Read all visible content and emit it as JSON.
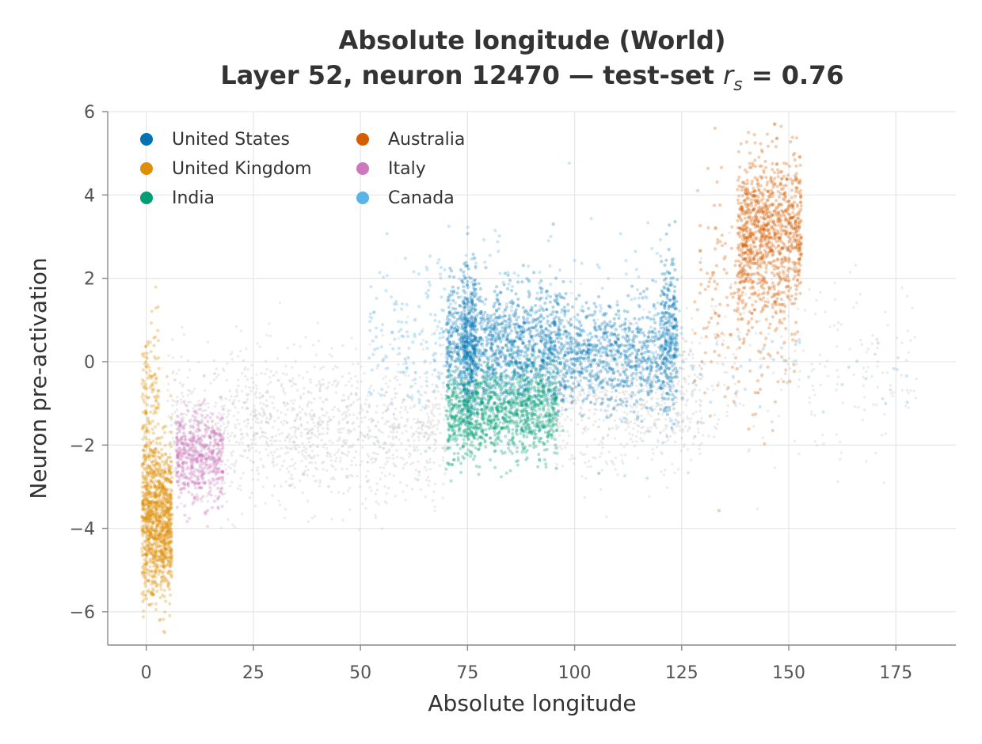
{
  "chart_data": {
    "type": "scatter",
    "title_line1": "Absolute longitude (World)",
    "title_line2_prefix": "Layer 52, neuron 12470 — test-set ",
    "title_stat_symbol": "r",
    "title_stat_subscript": "s",
    "title_line2_suffix": " = 0.76",
    "xlabel": "Absolute longitude",
    "ylabel": "Neuron pre-activation",
    "xlim": [
      -9,
      189
    ],
    "ylim": [
      -6.8,
      6.0
    ],
    "x_ticks": [
      0,
      25,
      50,
      75,
      100,
      125,
      150,
      175
    ],
    "x_tick_labels": [
      "0",
      "25",
      "50",
      "75",
      "100",
      "125",
      "150",
      "175"
    ],
    "y_ticks": [
      -6,
      -4,
      -2,
      0,
      2,
      4,
      6
    ],
    "y_tick_labels": [
      "−6",
      "−4",
      "−2",
      "0",
      "2",
      "4",
      "6"
    ],
    "grid": true,
    "legend_position": "top-left",
    "background_series": {
      "color": "#bbbbbb",
      "clusters": [
        {
          "x": [
            5,
            70
          ],
          "y_center": -1.6,
          "y_spread": 0.9,
          "count": 1400
        },
        {
          "x": [
            95,
            130
          ],
          "y_center": -1.0,
          "y_spread": 0.8,
          "count": 700
        },
        {
          "x": [
            125,
            180
          ],
          "y_center": 0.0,
          "y_spread": 1.2,
          "count": 250
        }
      ]
    },
    "series": [
      {
        "name": "United States",
        "color": "#0173b2",
        "legend_order": 0,
        "clusters": [
          {
            "x": [
              70,
              98
            ],
            "y_center": 0.3,
            "y_spread": 0.7,
            "count": 1200
          },
          {
            "x": [
              98,
              124
            ],
            "y_center": 0.2,
            "y_spread": 0.6,
            "count": 700
          },
          {
            "x": [
              74,
              77
            ],
            "y_center": 0.5,
            "y_spread": 0.9,
            "count": 300
          },
          {
            "x": [
              120,
              124
            ],
            "y_center": 0.8,
            "y_spread": 0.9,
            "count": 200
          }
        ]
      },
      {
        "name": "United Kingdom",
        "color": "#de8f05",
        "legend_order": 1,
        "clusters": [
          {
            "x": [
              -1,
              6
            ],
            "y_center": -3.8,
            "y_spread": 0.9,
            "count": 1100
          },
          {
            "x": [
              -1,
              3
            ],
            "y_center": -1.0,
            "y_spread": 1.0,
            "count": 150
          }
        ]
      },
      {
        "name": "India",
        "color": "#029e73",
        "legend_order": 2,
        "clusters": [
          {
            "x": [
              70,
              96
            ],
            "y_center": -1.2,
            "y_spread": 0.55,
            "count": 1200
          }
        ]
      },
      {
        "name": "Australia",
        "color": "#d55e00",
        "legend_order": 3,
        "clusters": [
          {
            "x": [
              138,
              153
            ],
            "y_center": 3.1,
            "y_spread": 0.9,
            "count": 1000
          },
          {
            "x": [
              128,
              152
            ],
            "y_center": 1.5,
            "y_spread": 1.5,
            "count": 220
          }
        ]
      },
      {
        "name": "Italy",
        "color": "#cc78bc",
        "legend_order": 4,
        "clusters": [
          {
            "x": [
              7,
              18
            ],
            "y_center": -2.3,
            "y_spread": 0.55,
            "count": 500
          }
        ]
      },
      {
        "name": "Canada",
        "color": "#56b4e9",
        "legend_order": 5,
        "clusters": [
          {
            "x": [
              52,
              125
            ],
            "y_center": 0.6,
            "y_spread": 1.1,
            "count": 500
          },
          {
            "x": [
              125,
              180
            ],
            "y_center": -0.2,
            "y_spread": 0.5,
            "count": 40
          }
        ]
      }
    ]
  }
}
